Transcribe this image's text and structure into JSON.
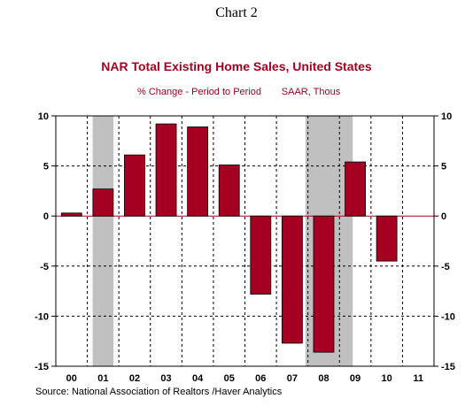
{
  "heading": "Chart 2",
  "chart_data": {
    "type": "bar",
    "title": "NAR Total Existing Home Sales, United States",
    "subtitle": "% Change - Period to Period",
    "subtitle_units": "SAAR, Thous",
    "source": "Source:  National Association of Realtors /Haver Analytics",
    "categories": [
      "00",
      "01",
      "02",
      "03",
      "04",
      "05",
      "06",
      "07",
      "08",
      "09",
      "10",
      "11"
    ],
    "values": [
      0.3,
      2.7,
      6.1,
      9.2,
      8.9,
      5.1,
      -7.8,
      -12.7,
      -13.6,
      5.4,
      -4.5,
      null
    ],
    "ylim": [
      -15,
      10
    ],
    "yticks": [
      10,
      5,
      0,
      -5,
      -10,
      -15
    ],
    "recessions": [
      {
        "start": 2001.17,
        "end": 2001.83
      },
      {
        "start": 2007.92,
        "end": 2009.42
      }
    ],
    "colors": {
      "bar": "#a50021",
      "bar_edge": "#000000",
      "title": "#a50021",
      "recession": "#c0c0c0",
      "zero_line": "#a50021"
    },
    "grid": true,
    "legend": "none"
  }
}
